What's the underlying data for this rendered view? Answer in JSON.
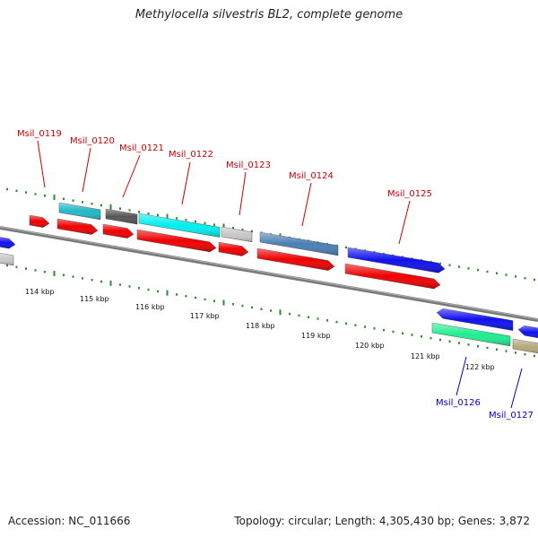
{
  "title": "Methylocella silvestris BL2, complete genome",
  "footer": {
    "accession": "Accession: NC_011666",
    "topology": "Topology: circular; Length: 4,305,430 bp; Genes: 3,872"
  },
  "colors": {
    "backbone": "#7a7a7a",
    "tick": "#2e8b2e",
    "label_top": "#cc0000",
    "label_bottom": "#0000cc"
  },
  "kbp_labels": [
    "114 kbp",
    "115 kbp",
    "116 kbp",
    "117 kbp",
    "118 kbp",
    "119 kbp",
    "120 kbp",
    "121 kbp",
    "122 kbp"
  ],
  "gene_labels": [
    {
      "text": "Msil_0119",
      "side": "top"
    },
    {
      "text": "Msil_0120",
      "side": "top"
    },
    {
      "text": "Msil_0121",
      "side": "top"
    },
    {
      "text": "Msil_0122",
      "side": "top"
    },
    {
      "text": "Msil_0123",
      "side": "top"
    },
    {
      "text": "Msil_0124",
      "side": "top"
    },
    {
      "text": "Msil_0125",
      "side": "top"
    },
    {
      "text": "Msil_0126",
      "side": "bottom"
    },
    {
      "text": "Msil_0127",
      "side": "bottom"
    }
  ]
}
